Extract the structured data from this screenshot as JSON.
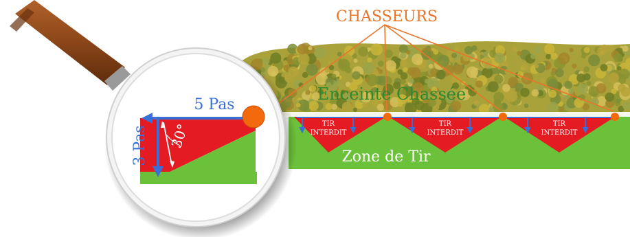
{
  "labels": {
    "hunters": "CHASSEURS",
    "hunted_area": "Enceinte Chassée",
    "firing_zone": "Zone de Tir",
    "no_fire_line1": "TIR",
    "no_fire_line2": "INTERDIT",
    "five_steps": "5 Pas",
    "three_steps": "3 Pas",
    "angle": "30°"
  },
  "colors": {
    "title_orange": "#e8752a",
    "green_text": "#2e8a2e",
    "zone_green": "#6cc13a",
    "no_fire_red": "#e51b24",
    "arrow_blue": "#3a6fd8",
    "hunter_orange": "#f26a0c",
    "forest_dark": "#7d8a2e",
    "forest_light": "#c9b53a",
    "handle_brown": "#8a4518",
    "lens_frame": "#f4f4f4"
  },
  "icons": {
    "magnifier": "magnifying-glass-icon",
    "hunter": "hunter-dot-icon"
  }
}
